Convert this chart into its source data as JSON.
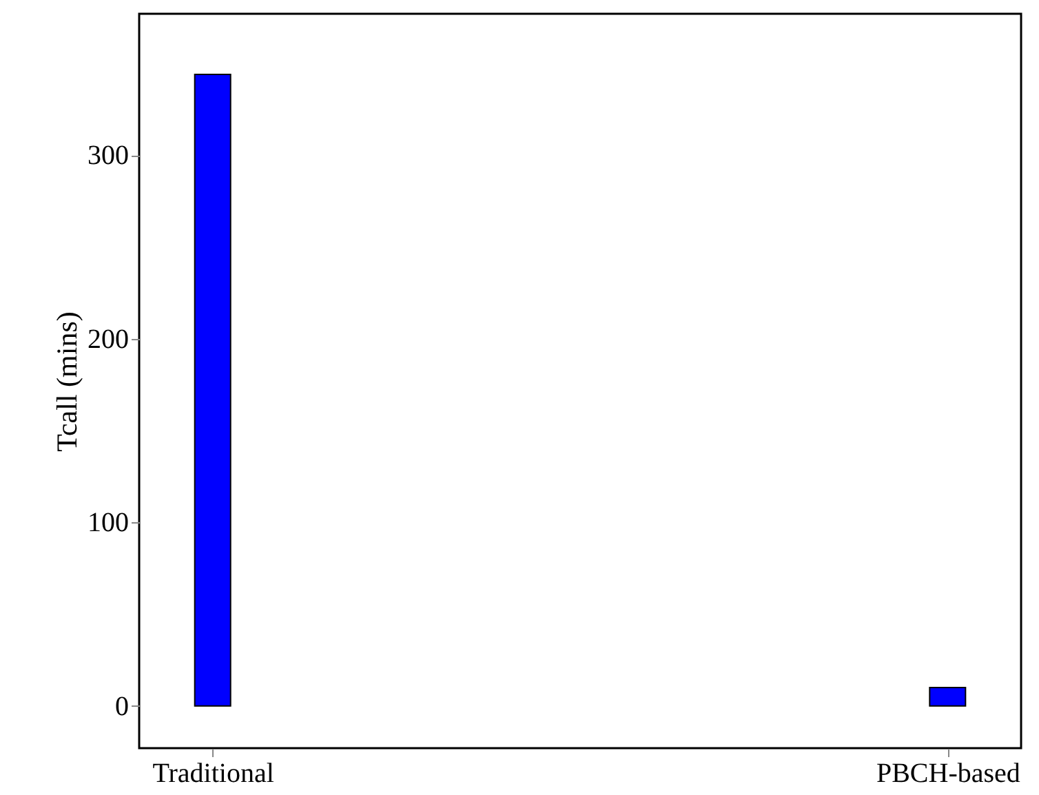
{
  "chart_data": {
    "type": "bar",
    "ylabel": "Tcall (mins)",
    "categories": [
      "Traditional",
      "PBCH-based"
    ],
    "series": [
      {
        "color": "#0000ff",
        "values": [
          344,
          10
        ]
      }
    ],
    "ylim": [
      -23,
      377
    ],
    "yticks": [
      0,
      100,
      200,
      300
    ],
    "grid": false
  }
}
